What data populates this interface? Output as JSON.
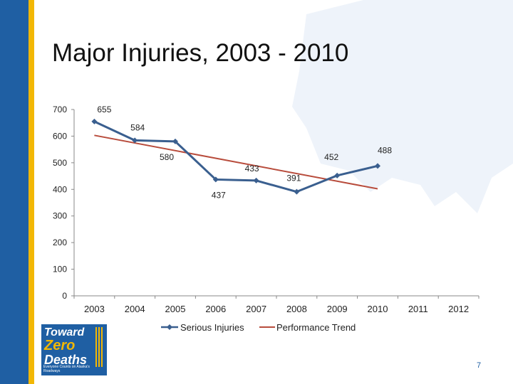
{
  "slide": {
    "title": "Major Injuries, 2003 - 2010",
    "page_number": "7",
    "accent_blue": "#1f5fa3",
    "accent_gold": "#f2b705"
  },
  "logo": {
    "line1": "Toward",
    "line2": "Zero",
    "line3": "Deaths",
    "tagline": "Everyone Counts on Alaska's Roadways"
  },
  "chart_data": {
    "type": "line",
    "title": "",
    "xlabel": "",
    "ylabel": "",
    "categories": [
      "2003",
      "2004",
      "2005",
      "2006",
      "2007",
      "2008",
      "2009",
      "2010",
      "2011",
      "2012"
    ],
    "ylim": [
      0,
      700
    ],
    "yticks": [
      0,
      100,
      200,
      300,
      400,
      500,
      600,
      700
    ],
    "legend_position": "bottom",
    "series": [
      {
        "name": "Serious Injuries",
        "color": "#3a5f8f",
        "marker": "diamond",
        "values": [
          655,
          584,
          580,
          437,
          433,
          391,
          452,
          488,
          null,
          null
        ],
        "data_labels": [
          "655",
          "584",
          "580",
          "437",
          "433",
          "391",
          "452",
          "488"
        ]
      },
      {
        "name": "Performance Trend",
        "color": "#b84c3c",
        "marker": "none",
        "start": {
          "x": "2003",
          "y": 603
        },
        "end": {
          "x": "2010",
          "y": 402
        }
      }
    ]
  }
}
